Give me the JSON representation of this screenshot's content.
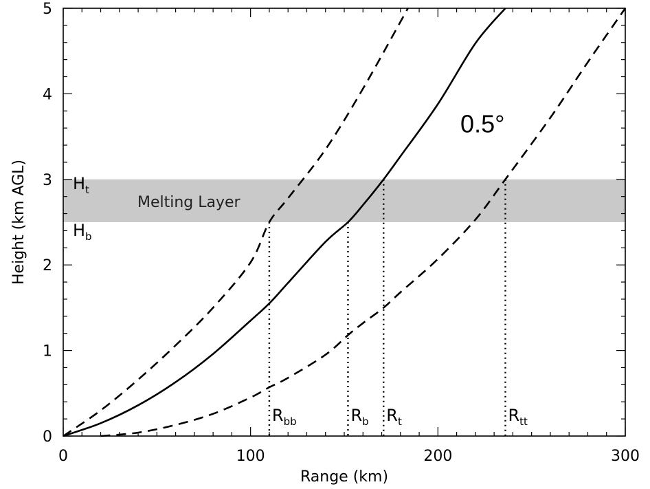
{
  "chart_data": {
    "type": "line",
    "title": "",
    "xlabel": "Range (km)",
    "ylabel": "Height (km AGL)",
    "xlim": [
      0,
      300
    ],
    "ylim": [
      0,
      5
    ],
    "x_ticks": [
      0,
      100,
      200,
      300
    ],
    "y_ticks": [
      0,
      1,
      2,
      3,
      4,
      5
    ],
    "grid": false,
    "series": [
      {
        "name": "0.5°",
        "style": "solid",
        "x": [
          0,
          20,
          40,
          60,
          80,
          100,
          110,
          120,
          140,
          152,
          160,
          171,
          180,
          200,
          220,
          236
        ],
        "y": [
          0,
          0.15,
          0.36,
          0.63,
          0.96,
          1.35,
          1.55,
          1.79,
          2.27,
          2.5,
          2.7,
          3.0,
          3.27,
          3.88,
          4.59,
          5.0
        ]
      },
      {
        "name": "",
        "style": "dashed",
        "x": [
          0,
          20,
          40,
          60,
          80,
          100,
          110,
          120,
          140,
          160,
          184
        ],
        "y": [
          0,
          0.3,
          0.66,
          1.06,
          1.5,
          2.03,
          2.5,
          2.78,
          3.35,
          4.06,
          5.0
        ]
      },
      {
        "name": "",
        "style": "dashed",
        "x": [
          20,
          40,
          60,
          80,
          100,
          110,
          120,
          140,
          152,
          160,
          171,
          180,
          200,
          220,
          236,
          260,
          280,
          300
        ],
        "y": [
          0,
          0.04,
          0.13,
          0.26,
          0.45,
          0.57,
          0.68,
          0.95,
          1.18,
          1.32,
          1.5,
          1.68,
          2.07,
          2.53,
          3.0,
          3.72,
          4.37,
          5.0
        ]
      }
    ],
    "melting_layer": {
      "label": "Melting Layer",
      "bottom": 2.5,
      "top": 3.0,
      "color": "#c9c9c9"
    },
    "height_labels": [
      {
        "main": "H",
        "sub": "t",
        "value": 3.0
      },
      {
        "main": "H",
        "sub": "b",
        "value": 2.5
      }
    ],
    "range_markers": [
      {
        "main": "R",
        "sub": "bb",
        "x": 110,
        "y": 2.5
      },
      {
        "main": "R",
        "sub": "b",
        "x": 152,
        "y": 2.5
      },
      {
        "main": "R",
        "sub": "t",
        "x": 171,
        "y": 3.0
      },
      {
        "main": "R",
        "sub": "tt",
        "x": 236,
        "y": 3.0
      }
    ],
    "annotation": {
      "text": "0.5°",
      "x": 212,
      "y": 3.55
    }
  }
}
